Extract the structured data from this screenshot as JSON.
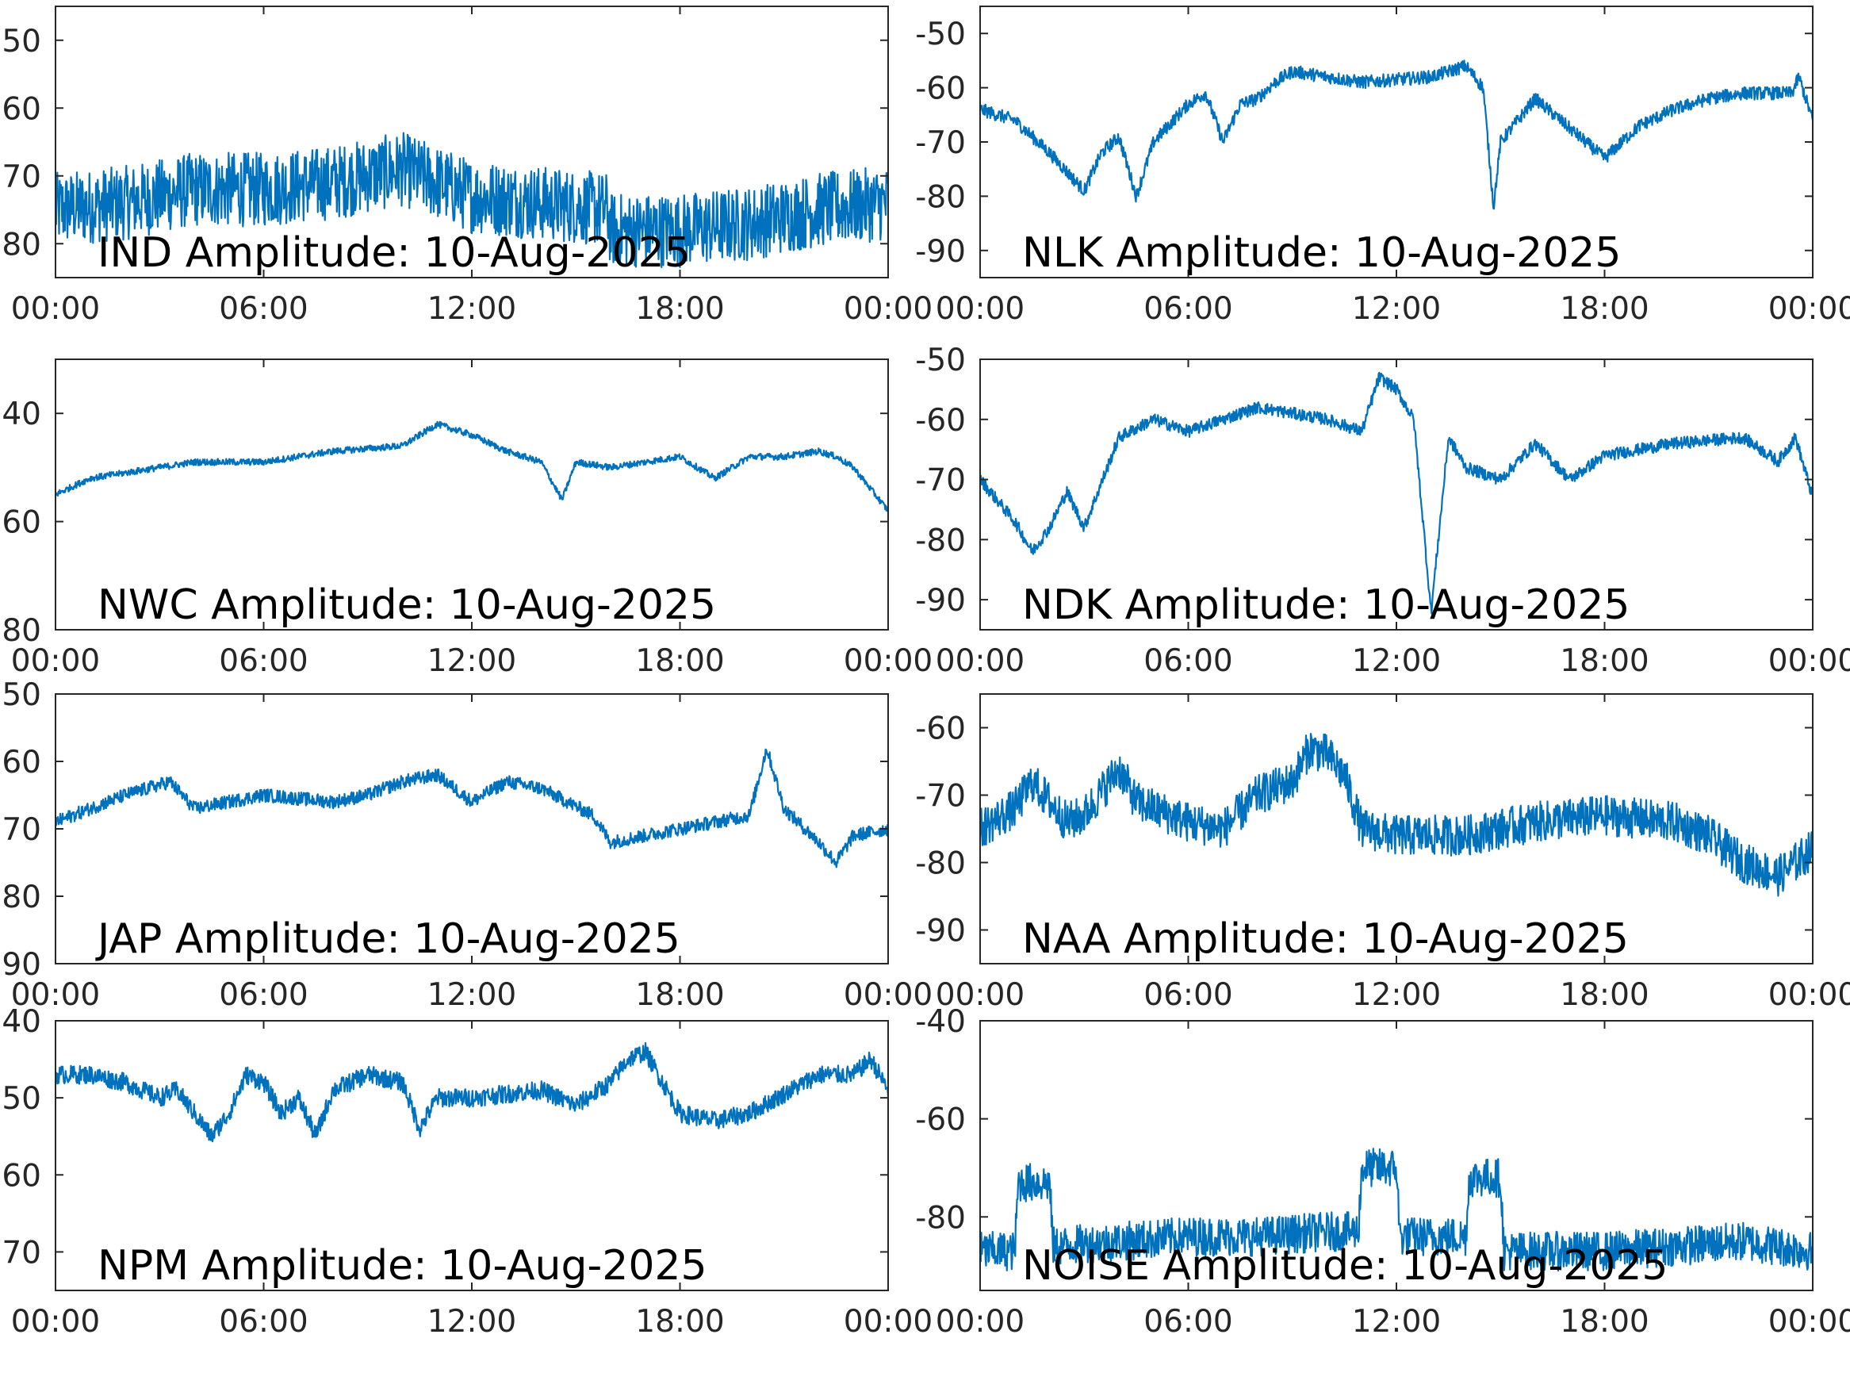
{
  "colors": {
    "trace": "#0072BD",
    "axis": "#262626",
    "background": "#ffffff"
  },
  "chart_data": [
    {
      "type": "line",
      "title": "IND Amplitude: 10-Aug-2025",
      "xlim": [
        "00:00",
        "00:00"
      ],
      "xticks": [
        "00:00",
        "06:00",
        "12:00",
        "18:00",
        "00:00"
      ],
      "ylim": [
        -85,
        -45
      ],
      "yticks": [
        -50,
        -60,
        -70,
        -80
      ],
      "ytick_labels": [
        "50",
        "60",
        "70",
        "80"
      ],
      "x_hours": [
        0,
        2,
        4,
        6,
        8,
        10,
        12,
        14,
        15.9,
        16,
        18,
        20,
        22,
        24
      ],
      "y": [
        -75,
        -74,
        -72,
        -72,
        -71,
        -69,
        -73,
        -74,
        -75,
        -78,
        -78,
        -77,
        -75,
        -74
      ],
      "noise": 5.5
    },
    {
      "type": "line",
      "title": "NLK Amplitude: 10-Aug-2025",
      "xlim": [
        "00:00",
        "00:00"
      ],
      "xticks": [
        "00:00",
        "06:00",
        "12:00",
        "18:00",
        "00:00"
      ],
      "ylim": [
        -95,
        -45
      ],
      "yticks": [
        -50,
        -60,
        -70,
        -80,
        -90
      ],
      "ytick_labels": [
        "-50",
        "-60",
        "-70",
        "-80",
        "-90"
      ],
      "x_hours": [
        0,
        1,
        2,
        3,
        3.5,
        4,
        4.5,
        5,
        6,
        6.5,
        7,
        7.5,
        8,
        8.5,
        9,
        11,
        13,
        14,
        14.5,
        14.8,
        15,
        16,
        18,
        19,
        20,
        21,
        22,
        23.4,
        23.6,
        24
      ],
      "y": [
        -64,
        -66,
        -72,
        -79,
        -72,
        -69,
        -80,
        -70,
        -63,
        -61,
        -70,
        -63,
        -62,
        -59,
        -57,
        -59,
        -58,
        -56,
        -60,
        -82,
        -70,
        -62,
        -73,
        -67,
        -64,
        -62,
        -61,
        -61,
        -58,
        -66
      ],
      "noise": 1.2
    },
    {
      "type": "line",
      "title": "NWC Amplitude: 10-Aug-2025",
      "xlim": [
        "00:00",
        "00:00"
      ],
      "xticks": [
        "00:00",
        "06:00",
        "12:00",
        "18:00",
        "00:00"
      ],
      "ylim": [
        -80,
        -30
      ],
      "yticks": [
        -40,
        -60,
        -80
      ],
      "ytick_labels": [
        "40",
        "60",
        "80"
      ],
      "x_hours": [
        0,
        1,
        2,
        4,
        6,
        8,
        10,
        11,
        12,
        13,
        14,
        14.6,
        15,
        16,
        18,
        19,
        20,
        21,
        22,
        22.5,
        23,
        24
      ],
      "y": [
        -55,
        -52,
        -51,
        -49,
        -49,
        -47,
        -46,
        -42,
        -44,
        -47,
        -49,
        -56,
        -49,
        -50,
        -48,
        -52,
        -48,
        -48,
        -47,
        -48,
        -50,
        -58
      ],
      "noise": 0.6
    },
    {
      "type": "line",
      "title": "NDK Amplitude: 10-Aug-2025",
      "xlim": [
        "00:00",
        "00:00"
      ],
      "xticks": [
        "00:00",
        "06:00",
        "12:00",
        "18:00",
        "00:00"
      ],
      "ylim": [
        -95,
        -50
      ],
      "yticks": [
        -50,
        -60,
        -70,
        -80,
        -90
      ],
      "ytick_labels": [
        "-50",
        "-60",
        "-70",
        "-80",
        "-90"
      ],
      "x_hours": [
        0,
        1,
        1.5,
        2,
        2.5,
        3,
        4,
        5,
        6,
        8,
        10,
        11,
        11.5,
        12,
        12.5,
        13,
        13.5,
        14,
        15,
        16,
        17,
        18,
        20,
        22,
        23,
        23.5,
        24
      ],
      "y": [
        -70,
        -77,
        -82,
        -78,
        -72,
        -78,
        -63,
        -60,
        -62,
        -58,
        -60,
        -62,
        -53,
        -55,
        -60,
        -92,
        -63,
        -68,
        -70,
        -64,
        -70,
        -66,
        -64,
        -63,
        -67,
        -63,
        -73
      ],
      "noise": 1.0
    },
    {
      "type": "line",
      "title": "JAP Amplitude: 10-Aug-2025",
      "xlim": [
        "00:00",
        "00:00"
      ],
      "xticks": [
        "00:00",
        "06:00",
        "12:00",
        "18:00",
        "00:00"
      ],
      "ylim": [
        -90,
        -50
      ],
      "yticks": [
        -50,
        -60,
        -70,
        -80,
        -90
      ],
      "ytick_labels": [
        "50",
        "60",
        "70",
        "80",
        "90"
      ],
      "x_hours": [
        0,
        2,
        3.3,
        4,
        6,
        8,
        9,
        10,
        11,
        12,
        13,
        14,
        15.5,
        16,
        17,
        18,
        19,
        20,
        20.5,
        21,
        22,
        22.5,
        23,
        24
      ],
      "y": [
        -69,
        -65,
        -63,
        -67,
        -65,
        -66,
        -65,
        -63,
        -62,
        -66,
        -63,
        -64,
        -68,
        -72,
        -71,
        -70,
        -69,
        -68,
        -58,
        -67,
        -72,
        -75,
        -71,
        -70
      ],
      "noise": 1.0
    },
    {
      "type": "line",
      "title": "NAA Amplitude: 10-Aug-2025",
      "xlim": [
        "00:00",
        "00:00"
      ],
      "xticks": [
        "00:00",
        "06:00",
        "12:00",
        "18:00",
        "00:00"
      ],
      "ylim": [
        -95,
        -55
      ],
      "yticks": [
        -60,
        -70,
        -80,
        -90
      ],
      "ytick_labels": [
        "-60",
        "-70",
        "-80",
        "-90"
      ],
      "x_hours": [
        0,
        1,
        1.5,
        2.5,
        3,
        4,
        4.5,
        6,
        7,
        8,
        9,
        9.5,
        10,
        10.5,
        11,
        12,
        14,
        16,
        18,
        20,
        21,
        22,
        23,
        24
      ],
      "y": [
        -75,
        -72,
        -68,
        -74,
        -73,
        -66,
        -71,
        -74,
        -75,
        -70,
        -68,
        -63,
        -64,
        -67,
        -75,
        -76,
        -76,
        -74,
        -73,
        -74,
        -76,
        -80,
        -82,
        -78
      ],
      "noise": 3.0
    },
    {
      "type": "line",
      "title": "NPM Amplitude: 10-Aug-2025",
      "xlim": [
        "00:00",
        "00:00"
      ],
      "xticks": [
        "00:00",
        "06:00",
        "12:00",
        "18:00",
        "00:00"
      ],
      "ylim": [
        -75,
        -40
      ],
      "yticks": [
        -40,
        -50,
        -60,
        -70
      ],
      "ytick_labels": [
        "40",
        "50",
        "60",
        "70"
      ],
      "x_hours": [
        0,
        1,
        2,
        3,
        3.5,
        4.5,
        5,
        5.5,
        6,
        6.5,
        7,
        7.5,
        8,
        9,
        10,
        10.5,
        11,
        12,
        14,
        15,
        16,
        16.5,
        17,
        18,
        19,
        20,
        22,
        23,
        23.5,
        24
      ],
      "y": [
        -47,
        -47,
        -48,
        -50,
        -49,
        -55,
        -52,
        -47,
        -48,
        -52,
        -50,
        -55,
        -49,
        -47,
        -48,
        -54,
        -50,
        -50,
        -49,
        -51,
        -48,
        -45,
        -44,
        -52,
        -53,
        -52,
        -47,
        -47,
        -45,
        -49
      ],
      "noise": 1.2
    },
    {
      "type": "line",
      "title": "NOISE Amplitude: 10-Aug-2025",
      "xlim": [
        "00:00",
        "00:00"
      ],
      "xticks": [
        "00:00",
        "06:00",
        "12:00",
        "18:00",
        "00:00"
      ],
      "ylim": [
        -95,
        -40
      ],
      "yticks": [
        -40,
        -60,
        -80
      ],
      "ytick_labels": [
        "-40",
        "-60",
        "-80"
      ],
      "x_hours": [
        0,
        1,
        1.1,
        2,
        2.1,
        4,
        6,
        8,
        10,
        10.9,
        11,
        12,
        12.1,
        14,
        14.1,
        15,
        15.1,
        18,
        20,
        22,
        24
      ],
      "y": [
        -87,
        -87,
        -73,
        -73,
        -86,
        -85,
        -84,
        -84,
        -83,
        -83,
        -70,
        -70,
        -84,
        -84,
        -72,
        -72,
        -87,
        -87,
        -86,
        -85,
        -87
      ],
      "noise": 4.0
    }
  ]
}
